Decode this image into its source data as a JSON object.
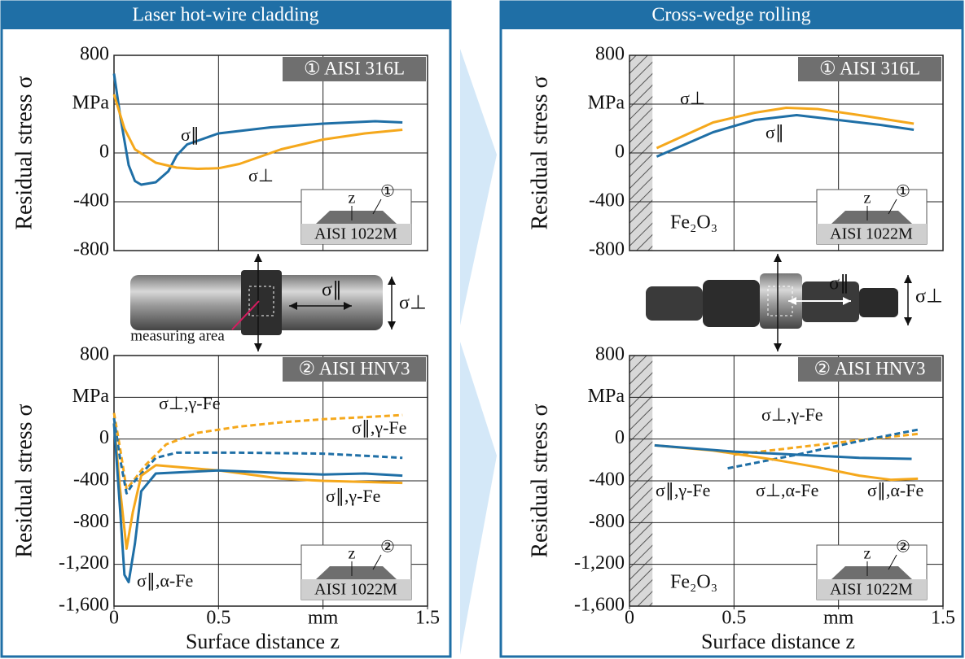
{
  "panels": [
    {
      "title": "Laser hot-wire cladding",
      "photo": {
        "labels": [
          "σ∥",
          "σ⊥",
          "measuring area"
        ]
      }
    },
    {
      "title": "Cross-wedge rolling",
      "photo": {
        "labels": [
          "σ∥",
          "σ⊥"
        ]
      }
    }
  ],
  "chart_data": [
    {
      "type": "line",
      "badge": "① AISI 316L",
      "ylabel": "Residual stress σ",
      "xlim": [
        0,
        1.5
      ],
      "xgrid": [
        0.5,
        1
      ],
      "ylim": [
        -800,
        800
      ],
      "yticks": [
        -800,
        -400,
        0,
        {
          "value": 400,
          "label": "MPa"
        },
        800
      ],
      "grid": true,
      "inset": {
        "label": "z",
        "number": "①",
        "substrate": "AISI 1022M"
      },
      "series": [
        {
          "name": "σ∥",
          "color": "#1f6fa6",
          "style": "solid",
          "x": [
            0,
            0.03,
            0.07,
            0.1,
            0.13,
            0.2,
            0.26,
            0.3,
            0.35,
            0.5,
            0.75,
            1.0,
            1.25,
            1.38
          ],
          "values": [
            650,
            300,
            -100,
            -230,
            -260,
            -240,
            -150,
            -20,
            70,
            160,
            210,
            240,
            260,
            250
          ]
        },
        {
          "name": "σ⊥",
          "color": "#f5a81c",
          "style": "solid",
          "x": [
            0,
            0.05,
            0.1,
            0.2,
            0.3,
            0.4,
            0.5,
            0.6,
            0.7,
            0.8,
            1.0,
            1.2,
            1.38
          ],
          "values": [
            480,
            200,
            30,
            -80,
            -120,
            -130,
            -125,
            -90,
            -30,
            30,
            110,
            160,
            190
          ]
        }
      ]
    },
    {
      "type": "line",
      "badge": "① AISI 316L",
      "ylabel": "Residual stress σ",
      "xlim": [
        0,
        1.5
      ],
      "xgrid": [
        0.5,
        1
      ],
      "ylim": [
        -800,
        800
      ],
      "yticks": [
        -800,
        -400,
        0,
        {
          "value": 400,
          "label": "MPa"
        },
        800
      ],
      "grid": true,
      "oxide_layer": [
        0,
        0.11
      ],
      "annotation": "Fe₂O₃",
      "inset": {
        "label": "z",
        "number": "①",
        "substrate": "AISI 1022M"
      },
      "series": [
        {
          "name": "σ⊥",
          "color": "#f5a81c",
          "style": "solid",
          "x": [
            0.13,
            0.4,
            0.6,
            0.75,
            0.9,
            1.1,
            1.36
          ],
          "values": [
            40,
            250,
            330,
            370,
            360,
            310,
            240
          ]
        },
        {
          "name": "σ∥",
          "color": "#1f6fa6",
          "style": "solid",
          "x": [
            0.13,
            0.4,
            0.6,
            0.8,
            1.0,
            1.2,
            1.36
          ],
          "values": [
            -30,
            170,
            270,
            310,
            270,
            230,
            190
          ]
        }
      ]
    },
    {
      "type": "line",
      "badge": "② AISI HNV3",
      "ylabel": "Residual stress σ",
      "xlabel": "Surface distance z",
      "xlim": [
        0,
        1.5
      ],
      "xticks": [
        0,
        0.5,
        {
          "value": 1,
          "label": "mm"
        },
        1.5
      ],
      "xgrid": [
        0.5,
        1
      ],
      "ylim": [
        -1600,
        800
      ],
      "yticks": [
        {
          "value": -1600,
          "label": "-1,600"
        },
        {
          "value": -1200,
          "label": "-1,200"
        },
        -800,
        -400,
        0,
        {
          "value": 400,
          "label": "MPa"
        },
        800
      ],
      "grid": true,
      "inset": {
        "label": "z",
        "number": "②",
        "substrate": "AISI 1022M"
      },
      "series": [
        {
          "name": "σ⊥,γ-Fe",
          "color": "#f5a81c",
          "style": "dashed",
          "x": [
            0,
            0.03,
            0.06,
            0.1,
            0.15,
            0.25,
            0.4,
            0.6,
            0.8,
            1.0,
            1.2,
            1.38
          ],
          "values": [
            250,
            -100,
            -480,
            -380,
            -250,
            -50,
            60,
            120,
            160,
            190,
            210,
            230
          ]
        },
        {
          "name": "σ∥,γ-Fe",
          "color": "#1f6fa6",
          "style": "dashed",
          "x": [
            0,
            0.03,
            0.06,
            0.1,
            0.2,
            0.3,
            0.6,
            1.0,
            1.2,
            1.38
          ],
          "values": [
            200,
            -200,
            -520,
            -400,
            -180,
            -130,
            -130,
            -140,
            -160,
            -180
          ]
        },
        {
          "name": "σ∥,γ-Fe",
          "color": "#f5a81c",
          "style": "solid",
          "x": [
            0,
            0.03,
            0.06,
            0.09,
            0.13,
            0.2,
            0.5,
            0.8,
            1.0,
            1.38
          ],
          "values": [
            150,
            -500,
            -1050,
            -700,
            -350,
            -250,
            -300,
            -380,
            -400,
            -420
          ]
        },
        {
          "name": "σ∥,α-Fe",
          "color": "#1f6fa6",
          "style": "solid",
          "x": [
            0,
            0.03,
            0.05,
            0.07,
            0.1,
            0.13,
            0.2,
            0.5,
            1.0,
            1.2,
            1.38
          ],
          "values": [
            150,
            -700,
            -1300,
            -1370,
            -1000,
            -500,
            -330,
            -300,
            -340,
            -330,
            -350
          ]
        }
      ]
    },
    {
      "type": "line",
      "badge": "② AISI HNV3",
      "ylabel": "Residual stress σ",
      "xlabel": "Surface distance z",
      "xlim": [
        0,
        1.5
      ],
      "xticks": [
        0,
        0.5,
        {
          "value": 1,
          "label": "mm"
        },
        1.5
      ],
      "xgrid": [
        0.5,
        1
      ],
      "ylim": [
        -1600,
        800
      ],
      "yticks": [
        {
          "value": -1600,
          "label": "-1,600"
        },
        {
          "value": -1200,
          "label": "-1,200"
        },
        -800,
        -400,
        0,
        {
          "value": 400,
          "label": "MPa"
        },
        800
      ],
      "grid": true,
      "oxide_layer": [
        0,
        0.11
      ],
      "annotation": "Fe₂O₃",
      "inset": {
        "label": "z",
        "number": "②",
        "substrate": "AISI 1022M"
      },
      "series": [
        {
          "name": "σ⊥,γ-Fe",
          "color": "#f5a81c",
          "style": "dashed",
          "x": [
            0.5,
            0.8,
            1.1,
            1.38
          ],
          "values": [
            -150,
            -80,
            -10,
            50
          ]
        },
        {
          "name": "σ∥,γ-Fe",
          "color": "#1f6fa6",
          "style": "dashed",
          "x": [
            0.47,
            0.8,
            1.1,
            1.38
          ],
          "values": [
            -280,
            -150,
            -20,
            90
          ]
        },
        {
          "name": "σ⊥,α-Fe",
          "color": "#f5a81c",
          "style": "solid",
          "x": [
            0.12,
            0.4,
            0.7,
            0.9,
            1.1,
            1.25,
            1.38
          ],
          "values": [
            -60,
            -110,
            -200,
            -270,
            -350,
            -390,
            -380
          ]
        },
        {
          "name": "σ∥,α-Fe",
          "color": "#1f6fa6",
          "style": "solid",
          "x": [
            0.12,
            0.5,
            0.8,
            1.1,
            1.35
          ],
          "values": [
            -60,
            -120,
            -150,
            -180,
            -190
          ]
        }
      ]
    }
  ]
}
